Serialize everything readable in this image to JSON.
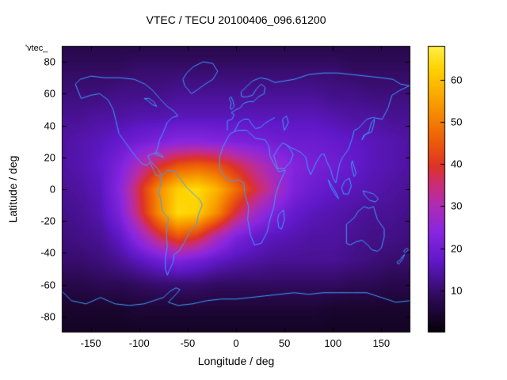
{
  "chart_data": {
    "type": "heatmap",
    "title": "VTEC / TECU 20100406_096.61200",
    "key_label": "'vtec_",
    "xlabel": "Longitude / deg",
    "ylabel": "Latitude / deg",
    "x_range": [
      -180,
      180
    ],
    "y_range": [
      -90,
      90
    ],
    "color_range": [
      0,
      68
    ],
    "x_ticks": [
      -150,
      -100,
      -50,
      0,
      50,
      100,
      150
    ],
    "y_ticks": [
      -80,
      -60,
      -40,
      -20,
      0,
      20,
      40,
      60,
      80
    ],
    "colorbar_ticks": [
      10,
      20,
      30,
      40,
      50,
      60
    ],
    "lon": [
      -180,
      -160,
      -140,
      -120,
      -100,
      -80,
      -60,
      -40,
      -20,
      0,
      20,
      40,
      60,
      80,
      100,
      120,
      140,
      160,
      180
    ],
    "lat": [
      90,
      75,
      60,
      45,
      30,
      15,
      0,
      -15,
      -30,
      -45,
      -60,
      -75,
      -90
    ],
    "values_tecu": [
      [
        7,
        7,
        7,
        7,
        7,
        7,
        7,
        7,
        7,
        7,
        7,
        7,
        7,
        7,
        7,
        7,
        7,
        7,
        7
      ],
      [
        9,
        9,
        9,
        9,
        10,
        10,
        10,
        10,
        10,
        10,
        10,
        10,
        10,
        10,
        10,
        9,
        9,
        9,
        9
      ],
      [
        11,
        11,
        11,
        12,
        12,
        12,
        13,
        13,
        13,
        13,
        13,
        13,
        13,
        13,
        12,
        12,
        11,
        11,
        11
      ],
      [
        13,
        13,
        14,
        14,
        15,
        15,
        16,
        16,
        16,
        16,
        16,
        16,
        16,
        16,
        15,
        14,
        14,
        13,
        13
      ],
      [
        14,
        15,
        16,
        18,
        20,
        22,
        24,
        24,
        23,
        22,
        21,
        20,
        19,
        19,
        18,
        17,
        16,
        15,
        14
      ],
      [
        14,
        15,
        17,
        22,
        30,
        38,
        44,
        46,
        44,
        38,
        32,
        27,
        23,
        21,
        20,
        18,
        16,
        15,
        14
      ],
      [
        13,
        14,
        16,
        24,
        38,
        52,
        62,
        64,
        58,
        48,
        38,
        30,
        22,
        19,
        17,
        16,
        15,
        14,
        13
      ],
      [
        12,
        13,
        15,
        22,
        36,
        52,
        64,
        62,
        52,
        38,
        28,
        22,
        18,
        16,
        15,
        14,
        13,
        13,
        12
      ],
      [
        11,
        12,
        13,
        17,
        26,
        36,
        44,
        40,
        30,
        22,
        18,
        16,
        15,
        14,
        14,
        13,
        12,
        12,
        11
      ],
      [
        10,
        10,
        11,
        13,
        16,
        19,
        22,
        20,
        17,
        15,
        14,
        13,
        13,
        13,
        13,
        12,
        11,
        10,
        10
      ],
      [
        7,
        7,
        8,
        8,
        9,
        10,
        10,
        10,
        9,
        9,
        9,
        9,
        9,
        9,
        9,
        8,
        8,
        7,
        7
      ],
      [
        4,
        4,
        4,
        4,
        5,
        5,
        5,
        5,
        5,
        5,
        5,
        5,
        5,
        5,
        4,
        4,
        4,
        4,
        4
      ],
      [
        3,
        3,
        3,
        3,
        3,
        3,
        3,
        3,
        3,
        3,
        3,
        3,
        3,
        3,
        3,
        3,
        3,
        3,
        3
      ]
    ],
    "palette": [
      {
        "t": 0.0,
        "c": "#060008"
      },
      {
        "t": 0.12,
        "c": "#2d0a56"
      },
      {
        "t": 0.25,
        "c": "#6018c8"
      },
      {
        "t": 0.35,
        "c": "#8826e0"
      },
      {
        "t": 0.45,
        "c": "#b02cb0"
      },
      {
        "t": 0.52,
        "c": "#cc2d72"
      },
      {
        "t": 0.58,
        "c": "#dd3326"
      },
      {
        "t": 0.68,
        "c": "#ee6207"
      },
      {
        "t": 0.8,
        "c": "#f89c00"
      },
      {
        "t": 0.92,
        "c": "#ffd200"
      },
      {
        "t": 1.0,
        "c": "#fff04a"
      }
    ],
    "coastline_color": "#3aa0ff",
    "axis_color": "#000000",
    "background_color": "#ffffff"
  }
}
